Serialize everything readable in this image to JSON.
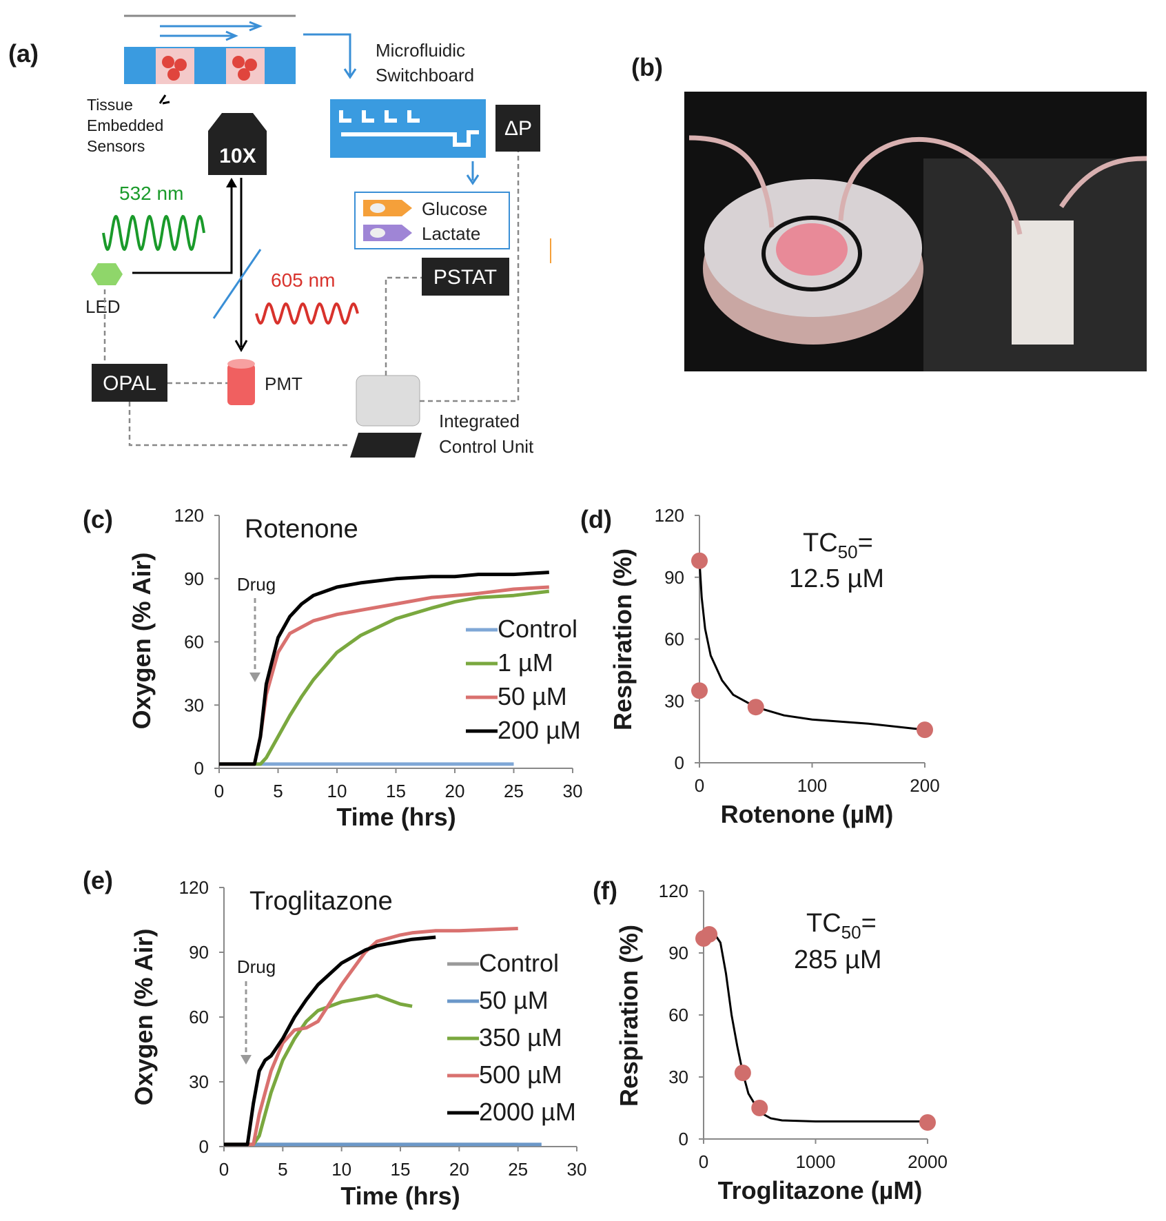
{
  "diagram": {
    "label": "(a)",
    "switchboard": [
      "Microfluidic",
      "Switchboard"
    ],
    "tissue": [
      "Tissue",
      "Embedded",
      "Sensors"
    ],
    "objective": "10X",
    "pressure": "ΔP",
    "excitation": "532 nm",
    "glucose": "Glucose",
    "lactate": "Lactate",
    "led": "LED",
    "emission": "605 nm",
    "pstat": "PSTAT",
    "opal": "OPAL",
    "pmt": "PMT",
    "control": [
      "Integrated",
      "Control Unit"
    ]
  },
  "photo": {
    "label": "(b)"
  },
  "chart_data": [
    {
      "type": "line",
      "label": "(c)",
      "title": "Rotenone",
      "annotation": "Drug",
      "xlabel": "Time (hrs)",
      "ylabel": "Oxygen (% Air)",
      "xlim": [
        0,
        30
      ],
      "ylim": [
        0,
        120
      ],
      "xticks": [
        0,
        5,
        10,
        15,
        20,
        25,
        30
      ],
      "yticks": [
        0,
        30,
        60,
        90,
        120
      ],
      "x": [
        0,
        2,
        3,
        3.5,
        4,
        5,
        6,
        7,
        8,
        10,
        12,
        15,
        18,
        20,
        22,
        25,
        28
      ],
      "series": [
        {
          "name": "Control",
          "color": "#7fa7d6",
          "values": [
            2,
            2,
            2,
            2,
            2,
            2,
            2,
            2,
            2,
            2,
            2,
            2,
            2,
            2,
            2,
            2,
            null
          ]
        },
        {
          "name": "1 µM",
          "color": "#7aa83f",
          "values": [
            2,
            2,
            2,
            2,
            5,
            15,
            25,
            34,
            42,
            55,
            63,
            71,
            76,
            79,
            81,
            82,
            84
          ]
        },
        {
          "name": "50 µM",
          "color": "#d9716f",
          "values": [
            2,
            2,
            2,
            15,
            35,
            55,
            64,
            67,
            70,
            73,
            75,
            78,
            81,
            82,
            83,
            85,
            86
          ]
        },
        {
          "name": "200 µM",
          "color": "#000000",
          "values": [
            2,
            2,
            2,
            15,
            40,
            62,
            72,
            78,
            82,
            86,
            88,
            90,
            91,
            91,
            92,
            92,
            93
          ]
        }
      ]
    },
    {
      "type": "scatter",
      "label": "(d)",
      "xlabel": "Rotenone (µM)",
      "ylabel": "Respiration (%)",
      "xlim": [
        0,
        200
      ],
      "ylim": [
        0,
        120
      ],
      "xticks": [
        0,
        100,
        200
      ],
      "yticks": [
        0,
        30,
        60,
        90,
        120
      ],
      "x": [
        0,
        0,
        50,
        200
      ],
      "values": [
        98,
        35,
        27,
        16
      ],
      "color": "#d06e6c",
      "fit": {
        "x": [
          0,
          2,
          5,
          10,
          20,
          30,
          50,
          75,
          100,
          150,
          200
        ],
        "values": [
          98,
          80,
          65,
          52,
          40,
          33,
          27,
          23,
          21,
          19,
          16
        ]
      },
      "tc50": {
        "text": "TC",
        "subscript": "50",
        "equals": "=",
        "value": "12.5 µM"
      }
    },
    {
      "type": "line",
      "label": "(e)",
      "title": "Troglitazone",
      "annotation": "Drug",
      "xlabel": "Time (hrs)",
      "ylabel": "Oxygen (% Air)",
      "xlim": [
        0,
        30
      ],
      "ylim": [
        0,
        120
      ],
      "xticks": [
        0,
        5,
        10,
        15,
        20,
        25,
        30
      ],
      "yticks": [
        0,
        30,
        60,
        90,
        120
      ],
      "x": [
        0,
        2,
        2.5,
        3,
        3.5,
        4,
        5,
        6,
        7,
        8,
        10,
        12,
        13,
        15,
        16,
        18,
        20,
        25,
        27
      ],
      "series": [
        {
          "name": "Control",
          "color": "#9a9a9a",
          "values": [
            1,
            1,
            1,
            1,
            1,
            1,
            1,
            1,
            1,
            1,
            1,
            1,
            1,
            1,
            1,
            1,
            1,
            1,
            null
          ]
        },
        {
          "name": "50 µM",
          "color": "#6b98c9",
          "values": [
            1,
            1,
            1,
            1,
            1,
            1,
            1,
            1,
            1,
            1,
            1,
            1,
            1,
            1,
            1,
            1,
            1,
            1,
            1
          ]
        },
        {
          "name": "350 µM",
          "color": "#7aa83f",
          "values": [
            1,
            1,
            1,
            5,
            15,
            25,
            40,
            50,
            58,
            63,
            67,
            69,
            70,
            66,
            65,
            null,
            null,
            null,
            null
          ]
        },
        {
          "name": "500 µM",
          "color": "#d9716f",
          "values": [
            1,
            1,
            1,
            15,
            25,
            35,
            48,
            54,
            55,
            58,
            75,
            90,
            95,
            98,
            99,
            100,
            100,
            101,
            null
          ]
        },
        {
          "name": "2000 µM",
          "color": "#000000",
          "values": [
            1,
            1,
            20,
            35,
            40,
            42,
            50,
            60,
            68,
            75,
            85,
            91,
            93,
            95,
            96,
            97,
            null,
            null,
            null
          ]
        }
      ]
    },
    {
      "type": "scatter",
      "label": "(f)",
      "xlabel": "Troglitazone (µM)",
      "ylabel": "Respiration (%)",
      "xlim": [
        0,
        2000
      ],
      "ylim": [
        0,
        120
      ],
      "xticks": [
        0,
        1000,
        2000
      ],
      "yticks": [
        0,
        30,
        60,
        90,
        120
      ],
      "x": [
        0,
        50,
        350,
        500,
        2000
      ],
      "values": [
        97,
        99,
        32,
        15,
        8
      ],
      "color": "#d06e6c",
      "fit": {
        "x": [
          0,
          100,
          150,
          200,
          250,
          300,
          350,
          400,
          500,
          600,
          700,
          1000,
          2000
        ],
        "values": [
          97,
          99,
          95,
          80,
          60,
          45,
          32,
          22,
          13,
          10,
          9,
          8.5,
          8.5
        ]
      },
      "tc50": {
        "text": "TC",
        "subscript": "50",
        "equals": "=",
        "value": "285 µM"
      }
    }
  ]
}
